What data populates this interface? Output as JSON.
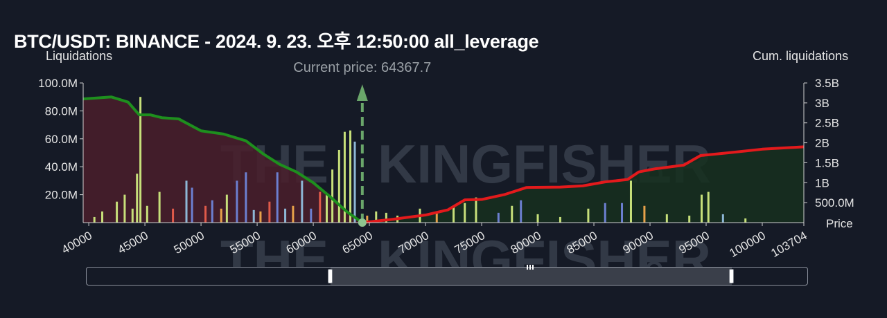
{
  "title": "BTC/USDT: BINANCE - 2024. 9. 23. 오후 12:50:00 all_leverage",
  "watermark": "THE KINGFISHER.IO",
  "chart_data": {
    "type": "bar",
    "ylabel_left": "Liquidations",
    "ylabel_right": "Cum. liquidations",
    "xlabel": "Price",
    "current_price_label": "Current price: 64367.7",
    "current_price": 64367.7,
    "xlim": [
      39500,
      103704
    ],
    "ylim_left": [
      0,
      100000000
    ],
    "ylim_right": [
      0,
      3500000000
    ],
    "x_ticks": [
      "40000",
      "45000",
      "50000",
      "55000",
      "60000",
      "65000",
      "70000",
      "75000",
      "80000",
      "85000",
      "90000",
      "95000",
      "100000",
      "103704"
    ],
    "y_ticks_left": [
      "20.0M",
      "40.0M",
      "60.0M",
      "80.0M",
      "100.0M"
    ],
    "y_ticks_right": [
      "500.0M",
      "1B",
      "1.5B",
      "2B",
      "2.5B",
      "3B",
      "3.5B"
    ],
    "colors": {
      "short_cum": "#e31a1c",
      "long_cum": "#1e8f1e",
      "long_fill": "#4a1f2c",
      "short_fill": "#16301f",
      "price_line": "#6aa66a",
      "bar_green": "#c7e07a",
      "bar_orange": "#e8a24a",
      "bar_red": "#e05a4a",
      "bar_blue": "#6c7fd0",
      "bar_lightblue": "#8db7d6"
    },
    "series": [
      {
        "name": "",
        "x": [
          39500,
          42000,
          43500,
          44500,
          45500,
          46500,
          48000,
          50000,
          52000,
          54000,
          55500,
          57000,
          58500,
          60000,
          61500,
          63000,
          64367.7
        ],
        "values": [
          3100000000,
          3150000000,
          3020000000,
          2700000000,
          2700000000,
          2630000000,
          2600000000,
          2300000000,
          2220000000,
          2050000000,
          1730000000,
          1460000000,
          1270000000,
          1000000000,
          650000000,
          270000000,
          0
        ]
      },
      {
        "name": "",
        "x": [
          64367.7,
          67000,
          70000,
          72000,
          73500,
          75000,
          77000,
          79000,
          82000,
          84000,
          86000,
          88000,
          89000,
          90500,
          93000,
          94500,
          97000,
          100000,
          103704
        ],
        "values": [
          0,
          80000000,
          190000000,
          320000000,
          570000000,
          580000000,
          700000000,
          880000000,
          890000000,
          920000000,
          1020000000,
          1080000000,
          1270000000,
          1350000000,
          1440000000,
          1680000000,
          1750000000,
          1840000000,
          1900000000
        ]
      }
    ],
    "bars": {
      "x": [
        40500,
        41200,
        42500,
        43200,
        43900,
        44300,
        44600,
        45200,
        46300,
        47500,
        48700,
        49200,
        50400,
        51000,
        51800,
        52300,
        53200,
        54000,
        54700,
        55300,
        56100,
        56800,
        57500,
        58200,
        59000,
        59800,
        60600,
        61200,
        61700,
        62300,
        62800,
        63300,
        63700,
        64800,
        65600,
        66500,
        67500,
        69500,
        71000,
        72500,
        73500,
        74500,
        76500,
        77700,
        78500,
        80000,
        82000,
        84500,
        86000,
        87500,
        88300,
        89500,
        91500,
        93500,
        94600,
        95200,
        96500,
        98500
      ],
      "values": [
        4000000,
        8000000,
        15000000,
        20000000,
        10000000,
        35000000,
        90000000,
        12000000,
        22000000,
        10000000,
        30000000,
        25000000,
        12000000,
        16000000,
        10000000,
        20000000,
        30000000,
        36000000,
        9000000,
        8000000,
        15000000,
        36000000,
        10000000,
        12000000,
        30000000,
        10000000,
        22000000,
        20000000,
        38000000,
        52000000,
        65000000,
        66000000,
        58000000,
        5000000,
        8000000,
        7000000,
        5000000,
        10000000,
        8000000,
        12000000,
        14000000,
        18000000,
        7000000,
        12000000,
        16000000,
        6000000,
        4000000,
        10000000,
        14000000,
        14000000,
        30000000,
        12000000,
        6000000,
        5000000,
        20000000,
        22000000,
        6000000,
        3000000
      ],
      "colors": [
        "green",
        "green",
        "green",
        "green",
        "green",
        "green",
        "green",
        "green",
        "green",
        "red",
        "lightblue",
        "blue",
        "red",
        "blue",
        "orange",
        "green",
        "blue",
        "blue",
        "lightblue",
        "orange",
        "red",
        "blue",
        "lightblue",
        "orange",
        "lightblue",
        "blue",
        "red",
        "green",
        "green",
        "green",
        "green",
        "green",
        "lightblue",
        "orange",
        "green",
        "green",
        "green",
        "green",
        "orange",
        "green",
        "green",
        "green",
        "blue",
        "green",
        "blue",
        "green",
        "green",
        "green",
        "blue",
        "blue",
        "green",
        "orange",
        "green",
        "green",
        "green",
        "green",
        "lightblue",
        "green"
      ]
    }
  }
}
